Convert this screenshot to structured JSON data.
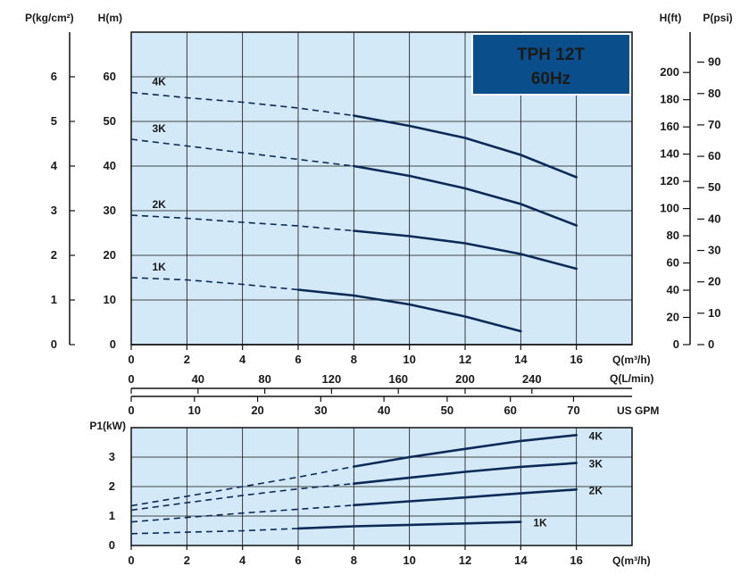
{
  "badge": {
    "line1": "TPH 12T",
    "line2": "60Hz",
    "bg_color": "#0a4f8c",
    "text_color": "#ffffff"
  },
  "colors": {
    "plot_bg": "#d3e9f7",
    "grid": "#111111",
    "curve": "#0d2a57",
    "frame": "#111111"
  },
  "chart_data": [
    {
      "type": "line",
      "xlabel": "Q(m³/h)",
      "ylabel": "H(m)",
      "xlim": [
        0,
        18
      ],
      "ylim": [
        0,
        70
      ],
      "x_ticks": [
        0,
        2,
        4,
        6,
        8,
        10,
        12,
        14,
        16
      ],
      "y_ticks": [
        0,
        10,
        20,
        30,
        40,
        50,
        60
      ],
      "grid": true,
      "secondary_axes": {
        "left_pressure": {
          "label": "P(kg/cm²)",
          "ticks": [
            0,
            1,
            2,
            3,
            4,
            5,
            6
          ],
          "meters_per_unit": 10
        },
        "right_head_ft": {
          "label": "H(ft)",
          "ticks": [
            0,
            20,
            40,
            60,
            80,
            100,
            120,
            140,
            160,
            180,
            200
          ],
          "meters_per_unit": 0.3048
        },
        "right_pressure_psi": {
          "label": "P(psi)",
          "ticks": [
            0,
            10,
            20,
            30,
            40,
            50,
            60,
            70,
            80,
            90
          ],
          "meters_per_unit": 0.7031
        },
        "flow_lpm": {
          "label": "Q(L/min)",
          "ticks": [
            0,
            40,
            80,
            120,
            160,
            200,
            240
          ],
          "m3h_per_unit": 0.06
        },
        "flow_gpm": {
          "label": "US GPM",
          "ticks": [
            0,
            10,
            20,
            30,
            40,
            50,
            60,
            70
          ],
          "m3h_per_unit": 0.2271
        }
      },
      "series": [
        {
          "name": "1K",
          "dashed_until": 6,
          "points": [
            [
              0,
              15
            ],
            [
              2,
              14.5
            ],
            [
              4,
              13.5
            ],
            [
              6,
              12.3
            ],
            [
              8,
              11
            ],
            [
              10,
              9
            ],
            [
              12,
              6.3
            ],
            [
              14,
              3
            ]
          ]
        },
        {
          "name": "2K",
          "dashed_until": 8,
          "points": [
            [
              0,
              29
            ],
            [
              2,
              28.3
            ],
            [
              4,
              27.4
            ],
            [
              6,
              26.6
            ],
            [
              8,
              25.5
            ],
            [
              10,
              24.3
            ],
            [
              12,
              22.7
            ],
            [
              14,
              20.3
            ],
            [
              16,
              17
            ]
          ]
        },
        {
          "name": "3K",
          "dashed_until": 8,
          "points": [
            [
              0,
              46
            ],
            [
              2,
              44.5
            ],
            [
              4,
              43
            ],
            [
              6,
              41.5
            ],
            [
              8,
              40
            ],
            [
              10,
              37.8
            ],
            [
              12,
              35
            ],
            [
              14,
              31.5
            ],
            [
              16,
              26.7
            ]
          ]
        },
        {
          "name": "4K",
          "dashed_until": 8,
          "points": [
            [
              0,
              56.5
            ],
            [
              2,
              55.3
            ],
            [
              4,
              54.3
            ],
            [
              6,
              53
            ],
            [
              8,
              51.3
            ],
            [
              10,
              49
            ],
            [
              12,
              46.3
            ],
            [
              14,
              42.5
            ],
            [
              16,
              37.5
            ]
          ]
        }
      ]
    },
    {
      "type": "line",
      "xlabel": "Q(m³/h)",
      "ylabel": "P1(kW)",
      "xlim": [
        0,
        18
      ],
      "ylim": [
        0,
        4
      ],
      "x_ticks": [
        0,
        2,
        4,
        6,
        8,
        10,
        12,
        14,
        16
      ],
      "y_ticks": [
        0,
        1,
        2,
        3
      ],
      "grid": true,
      "series": [
        {
          "name": "1K",
          "dashed_until": 6,
          "points": [
            [
              0,
              0.4
            ],
            [
              2,
              0.45
            ],
            [
              4,
              0.5
            ],
            [
              6,
              0.58
            ],
            [
              8,
              0.65
            ],
            [
              10,
              0.7
            ],
            [
              12,
              0.75
            ],
            [
              14,
              0.8
            ]
          ]
        },
        {
          "name": "2K",
          "dashed_until": 8,
          "points": [
            [
              0,
              0.8
            ],
            [
              2,
              0.95
            ],
            [
              4,
              1.1
            ],
            [
              6,
              1.23
            ],
            [
              8,
              1.37
            ],
            [
              10,
              1.5
            ],
            [
              12,
              1.63
            ],
            [
              14,
              1.77
            ],
            [
              16,
              1.9
            ]
          ]
        },
        {
          "name": "3K",
          "dashed_until": 8,
          "points": [
            [
              0,
              1.2
            ],
            [
              2,
              1.45
            ],
            [
              4,
              1.7
            ],
            [
              6,
              1.92
            ],
            [
              8,
              2.1
            ],
            [
              10,
              2.3
            ],
            [
              12,
              2.5
            ],
            [
              14,
              2.67
            ],
            [
              16,
              2.8
            ]
          ]
        },
        {
          "name": "4K",
          "dashed_until": 8,
          "points": [
            [
              0,
              1.35
            ],
            [
              2,
              1.67
            ],
            [
              4,
              2.0
            ],
            [
              6,
              2.32
            ],
            [
              8,
              2.68
            ],
            [
              10,
              3.0
            ],
            [
              12,
              3.28
            ],
            [
              14,
              3.55
            ],
            [
              16,
              3.75
            ]
          ]
        }
      ]
    }
  ]
}
